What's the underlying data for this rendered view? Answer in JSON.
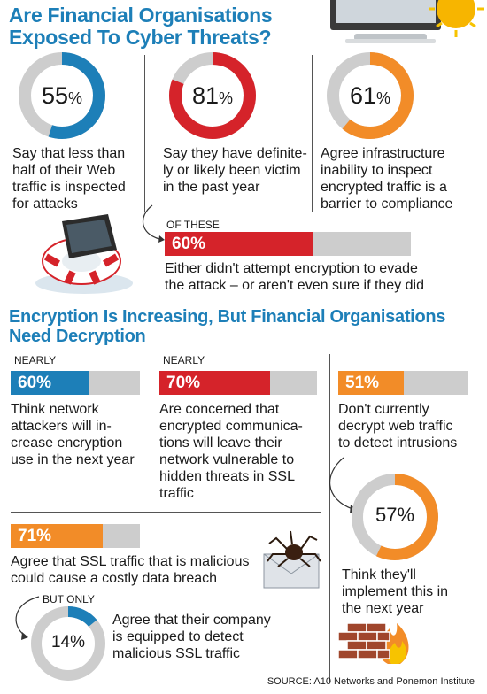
{
  "header": {
    "title_line1": "Are Financial Organisations",
    "title_line2": "Exposed To Cyber Threats?"
  },
  "section2": {
    "title_line1": "Encryption Is Increasing, But Financial Organisations",
    "title_line2": "Need Decryption"
  },
  "chart_data": [
    {
      "type": "pie",
      "id": "donut-1",
      "value": 55,
      "label": "55",
      "unit": "%",
      "color": "#1d7fb8",
      "caption": [
        "Say that less than",
        "half of their Web",
        "traffic is inspected",
        "for attacks"
      ]
    },
    {
      "type": "pie",
      "id": "donut-2",
      "value": 81,
      "label": "81",
      "unit": "%",
      "color": "#d5232a",
      "caption": [
        "Say they have definite-",
        "ly or likely been victim",
        "in the past year"
      ]
    },
    {
      "type": "pie",
      "id": "donut-3",
      "value": 61,
      "label": "61",
      "unit": "%",
      "color": "#f28c28",
      "caption": [
        "Agree infrastructure",
        "inability to inspect",
        "encrypted traffic is a",
        "barrier to compliance"
      ]
    },
    {
      "type": "bar",
      "id": "bar-these",
      "value": 60,
      "label": "60%",
      "prefix": "OF THESE",
      "color": "#d5232a",
      "caption": [
        "Either didn't attempt encryption to evade",
        "the attack – or aren't even sure if they did"
      ]
    },
    {
      "type": "bar",
      "id": "bar-network",
      "value": 60,
      "label": "60%",
      "prefix": "NEARLY",
      "color": "#1d7fb8",
      "caption": [
        "Think network",
        "attackers will in-",
        "crease encryption",
        "use in the next year"
      ]
    },
    {
      "type": "bar",
      "id": "bar-concerned",
      "value": 70,
      "label": "70%",
      "prefix": "NEARLY",
      "color": "#d5232a",
      "caption": [
        "Are concerned that",
        "encrypted communica-",
        "tions will leave their",
        "network vulnerable to",
        "hidden threats in SSL",
        "traffic"
      ]
    },
    {
      "type": "bar",
      "id": "bar-decrypt",
      "value": 51,
      "label": "51%",
      "color": "#f28c28",
      "caption": [
        "Don't currently",
        "decrypt web traffic",
        "to detect intrusions"
      ]
    },
    {
      "type": "bar",
      "id": "bar-ssl",
      "value": 71,
      "label": "71%",
      "color": "#f28c28",
      "caption": [
        "Agree that SSL traffic that is malicious",
        "could cause a costly data breach"
      ]
    },
    {
      "type": "pie",
      "id": "donut-implement",
      "value": 57,
      "label": "57%",
      "unit": "",
      "color": "#f28c28",
      "caption": [
        "Think they'll",
        "implement this in",
        "the next year"
      ]
    },
    {
      "type": "pie",
      "id": "donut-equipped",
      "value": 14,
      "label": "14%",
      "unit": "",
      "prefix": "BUT ONLY",
      "color": "#1d7fb8",
      "caption": [
        "Agree that their company",
        "is equipped to detect",
        "malicious SSL traffic"
      ]
    }
  ],
  "footer": {
    "source": "SOURCE: A10 Networks and Ponemon Institute"
  }
}
